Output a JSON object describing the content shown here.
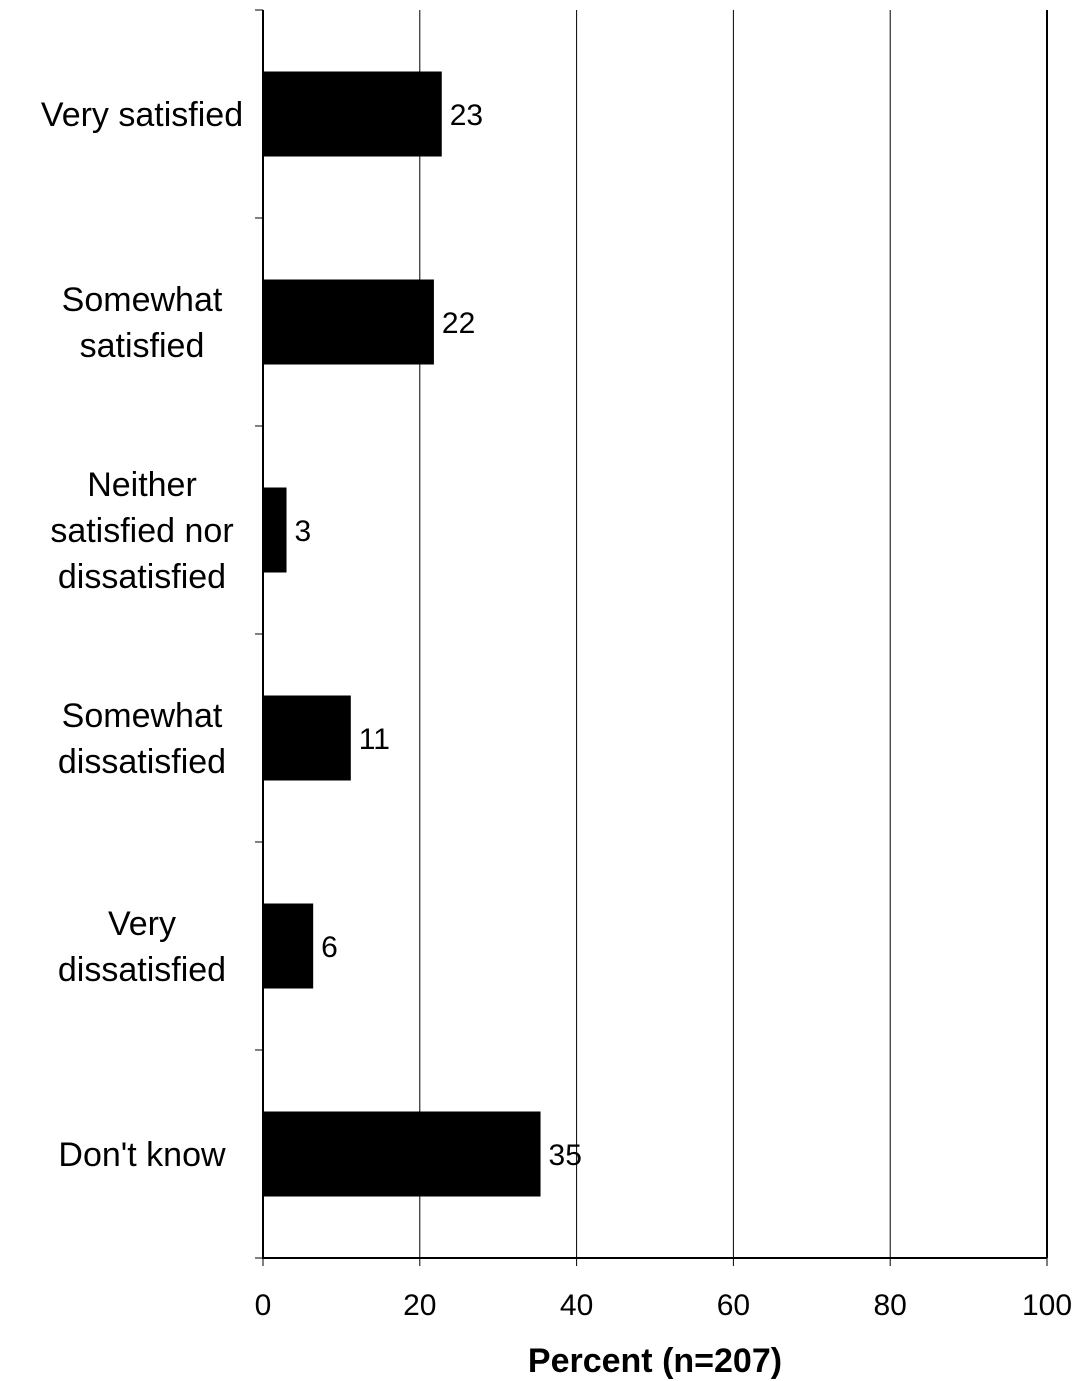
{
  "chart_data": {
    "type": "bar",
    "orientation": "horizontal",
    "categories": [
      [
        "Very satisfied"
      ],
      [
        "Somewhat",
        "satisfied"
      ],
      [
        "Neither",
        "satisfied nor",
        "dissatisfied"
      ],
      [
        "Somewhat",
        "dissatisfied"
      ],
      [
        "Very",
        "dissatisfied"
      ],
      [
        "Don't know"
      ]
    ],
    "values": [
      23,
      22,
      3,
      11,
      6,
      35
    ],
    "bar_values": [
      22.8,
      21.8,
      3.0,
      11.2,
      6.4,
      35.4
    ],
    "data_labels": [
      "23",
      "22",
      "3",
      "11",
      "6",
      "35"
    ],
    "xlabel": "Percent (n=207)",
    "xlim": [
      0,
      100
    ],
    "xticks": [
      0,
      20,
      40,
      60,
      80,
      100
    ],
    "xtick_labels": [
      "0",
      "20",
      "40",
      "60",
      "80",
      "100"
    ],
    "grid": "vertical",
    "legend": "none",
    "bar_color": "#000000"
  }
}
